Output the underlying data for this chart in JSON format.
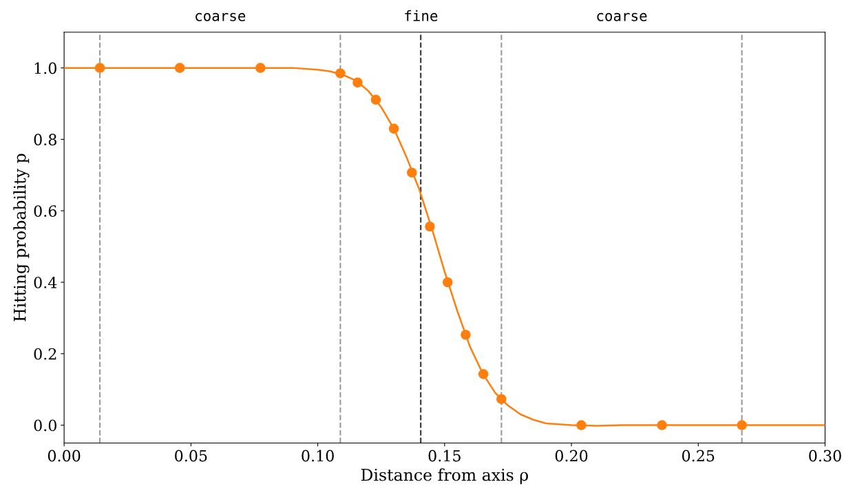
{
  "chart_data": {
    "type": "scatter",
    "xlabel": "Distance from axis ρ",
    "ylabel": "Hitting probability p",
    "xlim": [
      0,
      0.3
    ],
    "xticks": [
      {
        "value": 0,
        "label": "0.00"
      },
      {
        "value": 0.05,
        "label": "0.05"
      },
      {
        "value": 0.1,
        "label": "0.10"
      },
      {
        "value": 0.15,
        "label": "0.15"
      },
      {
        "value": 0.2,
        "label": "0.20"
      },
      {
        "value": 0.25,
        "label": "0.25"
      },
      {
        "value": 0.3,
        "label": "0.30"
      }
    ],
    "ylim": [
      -0.05,
      1.1
    ],
    "yticks": [
      {
        "value": 0,
        "label": "0.0"
      },
      {
        "value": 0.2,
        "label": "0.2"
      },
      {
        "value": 0.4,
        "label": "0.4"
      },
      {
        "value": 0.6,
        "label": "0.6"
      },
      {
        "value": 0.8,
        "label": "0.8"
      },
      {
        "value": 1,
        "label": "1.0"
      }
    ],
    "series": [
      {
        "type": "line",
        "color": "#ff7f0e",
        "marker": "none",
        "line_style": "solid",
        "x": [
          0,
          0.09,
          0.1,
          0.105,
          0.11,
          0.115,
          0.12,
          0.125,
          0.13,
          0.135,
          0.14,
          0.145,
          0.15,
          0.155,
          0.16,
          0.165,
          0.17,
          0.175,
          0.18,
          0.185,
          0.19,
          0.2,
          0.21,
          0.22,
          0.3
        ],
        "values": [
          1,
          1,
          0.995,
          0.99,
          0.98,
          0.965,
          0.935,
          0.89,
          0.83,
          0.75,
          0.66,
          0.55,
          0.43,
          0.32,
          0.22,
          0.145,
          0.09,
          0.055,
          0.03,
          0.015,
          0.005,
          0,
          -0.002,
          0,
          0
        ]
      },
      {
        "color": "#ff7f0e",
        "marker": "circle",
        "x": [
          0.0141,
          0.0456,
          0.0774,
          0.1089,
          0.1157,
          0.1229,
          0.13,
          0.1371,
          0.1442,
          0.1512,
          0.1583,
          0.1653,
          0.1724,
          0.2039,
          0.2357,
          0.2672
        ],
        "values": [
          1,
          1,
          1,
          0.985,
          0.959,
          0.911,
          0.83,
          0.707,
          0.556,
          0.4,
          0.253,
          0.143,
          0.073,
          0,
          0,
          0
        ]
      }
    ],
    "ref_lines": [
      {
        "axis": "x",
        "value": 0.0141,
        "color": "#999999",
        "line_style": "dashed"
      },
      {
        "axis": "x",
        "value": 0.1089,
        "color": "#999999",
        "line_style": "dashed"
      },
      {
        "axis": "x",
        "value": 0.1724,
        "color": "#999999",
        "line_style": "dashed"
      },
      {
        "axis": "x",
        "value": 0.2672,
        "color": "#999999",
        "line_style": "dashed"
      },
      {
        "axis": "x",
        "value": 0.1406,
        "color": "#333333",
        "line_style": "dashed"
      }
    ],
    "annotations": [
      "coarse",
      "fine",
      "coarse"
    ]
  }
}
